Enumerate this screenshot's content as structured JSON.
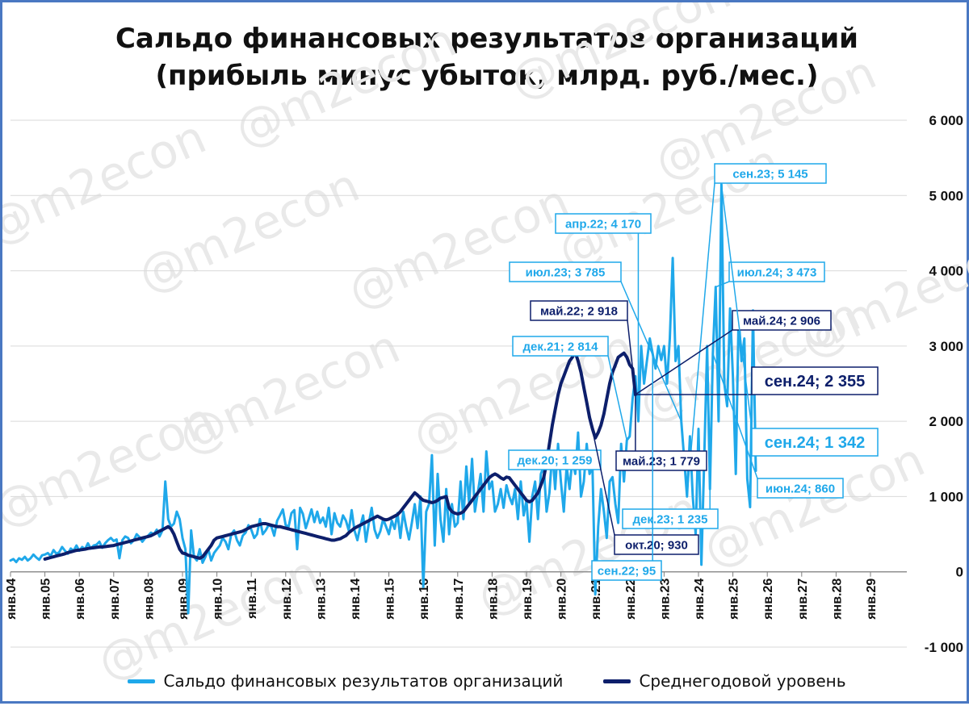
{
  "title_line1": "Сальдо финансовых результатов организаций",
  "title_line2": "(прибыль минус убыток, млрд. руб./мес.)",
  "watermark": "@m2econ",
  "colors": {
    "balance": "#1fa8ea",
    "average": "#0d1f6b",
    "grid": "#d9d9d9",
    "frame": "#4a78c2"
  },
  "chart_data": {
    "type": "line",
    "title": "Сальдо финансовых результатов организаций (прибыль минус убыток, млрд. руб./мес.)",
    "ylim": [
      -1000,
      6000
    ],
    "y_ticks": [
      -1000,
      0,
      1000,
      2000,
      3000,
      4000,
      5000,
      6000
    ],
    "y_tick_labels": [
      "-1 000",
      "0",
      "1 000",
      "2 000",
      "3 000",
      "4 000",
      "5 000",
      "6 000"
    ],
    "y_axis_position": "right",
    "grid": true,
    "legend_position": "bottom",
    "x_tick_labels": [
      "янв.04",
      "янв.05",
      "янв.06",
      "янв.07",
      "янв.08",
      "янв.09",
      "янв.10",
      "янв.11",
      "янв.12",
      "янв.13",
      "янв.14",
      "янв.15",
      "янв.16",
      "янв.17",
      "янв.18",
      "янв.19",
      "янв.20",
      "янв.21",
      "янв.22",
      "янв.23",
      "янв.24",
      "янв.25",
      "янв.26",
      "янв.27",
      "янв.28",
      "янв.29"
    ],
    "x_range": [
      "янв.04",
      "янв.29"
    ],
    "series": [
      {
        "name": "Сальдо финансовых результатов организаций",
        "color": "#1fa8ea",
        "start": "янв.04",
        "values": [
          150,
          170,
          130,
          180,
          160,
          200,
          150,
          180,
          230,
          190,
          160,
          220,
          230,
          250,
          210,
          290,
          240,
          260,
          330,
          280,
          240,
          310,
          280,
          350,
          280,
          330,
          300,
          380,
          310,
          350,
          360,
          400,
          320,
          380,
          420,
          450,
          410,
          430,
          180,
          420,
          470,
          450,
          380,
          420,
          500,
          460,
          400,
          450,
          480,
          520,
          500,
          560,
          470,
          550,
          1200,
          700,
          600,
          640,
          800,
          700,
          450,
          300,
          -550,
          550,
          200,
          150,
          300,
          120,
          200,
          300,
          150,
          250,
          300,
          350,
          450,
          400,
          300,
          500,
          550,
          420,
          350,
          480,
          520,
          620,
          560,
          450,
          500,
          700,
          500,
          550,
          620,
          600,
          480,
          680,
          750,
          830,
          620,
          600,
          780,
          820,
          300,
          850,
          770,
          580,
          700,
          830,
          660,
          800,
          650,
          720,
          600,
          850,
          500,
          780,
          650,
          600,
          750,
          680,
          550,
          820,
          550,
          420,
          600,
          750,
          400,
          650,
          850,
          560,
          450,
          540,
          700,
          600,
          500,
          680,
          570,
          780,
          450,
          800,
          600,
          430,
          650,
          900,
          580,
          1000,
          -200,
          800,
          900,
          1550,
          350,
          1300,
          700,
          400,
          1100,
          500,
          900,
          600,
          650,
          1200,
          700,
          1400,
          900,
          1500,
          800,
          1050,
          1300,
          800,
          1600,
          1100,
          1200,
          800,
          900,
          1100,
          850,
          1150,
          1000,
          900,
          1100,
          700,
          1200,
          750,
          950,
          400,
          1000,
          1200,
          700,
          1300,
          1400,
          800,
          1050,
          1600,
          1100,
          1700,
          1200,
          800,
          1400,
          1100,
          1500,
          1300,
          1850,
          1000,
          1200,
          1700,
          1300,
          1400,
          -300,
          600,
          1100,
          800,
          450,
          1200,
          1259,
          900,
          650,
          1700,
          1200,
          1750,
          1800,
          2300,
          2600,
          2000,
          3000,
          2500,
          2800,
          3100,
          2900,
          2700,
          3000,
          2814,
          3000,
          2500,
          3100,
          4170,
          2800,
          3000,
          2000,
          1500,
          1000,
          1800,
          1000,
          500,
          1900,
          95,
          1500,
          3000,
          1100,
          2900,
          3785,
          2000,
          5145,
          2500,
          2200,
          3500,
          2600,
          1300,
          3400,
          2800,
          3100,
          1235,
          860,
          3473,
          1342
        ]
      },
      {
        "name": "Среднегодовой уровень",
        "color": "#0d1f6b",
        "start": "янв.05",
        "values": [
          170,
          180,
          190,
          200,
          210,
          220,
          230,
          240,
          255,
          265,
          275,
          285,
          290,
          295,
          300,
          310,
          315,
          320,
          325,
          330,
          330,
          335,
          340,
          345,
          350,
          360,
          370,
          380,
          390,
          400,
          410,
          420,
          430,
          440,
          450,
          460,
          470,
          480,
          500,
          520,
          540,
          560,
          580,
          600,
          570,
          500,
          400,
          300,
          250,
          240,
          220,
          210,
          200,
          190,
          180,
          200,
          250,
          300,
          350,
          420,
          450,
          460,
          470,
          480,
          490,
          500,
          510,
          520,
          530,
          540,
          560,
          580,
          600,
          610,
          620,
          630,
          640,
          640,
          630,
          620,
          610,
          600,
          600,
          590,
          580,
          570,
          560,
          550,
          540,
          530,
          520,
          510,
          500,
          490,
          480,
          470,
          460,
          450,
          440,
          430,
          420,
          420,
          430,
          440,
          460,
          480,
          520,
          550,
          580,
          600,
          620,
          640,
          660,
          680,
          700,
          720,
          740,
          720,
          700,
          690,
          700,
          720,
          740,
          760,
          800,
          850,
          900,
          950,
          1000,
          1050,
          1020,
          980,
          950,
          940,
          930,
          920,
          930,
          950,
          980,
          990,
          1000,
          850,
          800,
          780,
          770,
          780,
          800,
          850,
          900,
          950,
          1000,
          1050,
          1100,
          1150,
          1200,
          1250,
          1280,
          1300,
          1280,
          1250,
          1230,
          1259,
          1250,
          1200,
          1150,
          1100,
          1050,
          1000,
          950,
          930,
          950,
          1000,
          1050,
          1150,
          1250,
          1450,
          1700,
          1950,
          2150,
          2350,
          2500,
          2600,
          2700,
          2800,
          2850,
          2918,
          2800,
          2650,
          2450,
          2250,
          2050,
          1900,
          1779,
          1850,
          1950,
          2100,
          2300,
          2500,
          2650,
          2750,
          2850,
          2880,
          2906,
          2850,
          2750,
          2700,
          2355
        ]
      }
    ],
    "annotations": [
      {
        "label": "сен.23; 5 145",
        "series": "Сальдо финансовых результатов организаций"
      },
      {
        "label": "апр.22; 4 170",
        "series": "Сальдо финансовых результатов организаций"
      },
      {
        "label": "июл.23; 3 785",
        "series": "Сальдо финансовых результатов организаций"
      },
      {
        "label": "июл.24; 3 473",
        "series": "Сальдо финансовых результатов организаций"
      },
      {
        "label": "май.22; 2 918",
        "series": "Среднегодовой уровень"
      },
      {
        "label": "май.24; 2 906",
        "series": "Среднегодовой уровень"
      },
      {
        "label": "дек.21; 2 814",
        "series": "Сальдо финансовых результатов организаций"
      },
      {
        "label": "сен.24; 2 355",
        "series": "Среднегодовой уровень"
      },
      {
        "label": "сен.24; 1 342",
        "series": "Сальдо финансовых результатов организаций"
      },
      {
        "label": "дек.20; 1 259",
        "series": "Сальдо финансовых результатов организаций"
      },
      {
        "label": "май.23; 1 779",
        "series": "Среднегодовой уровень"
      },
      {
        "label": "июн.24; 860",
        "series": "Сальдо финансовых результатов организаций"
      },
      {
        "label": "дек.23; 1 235",
        "series": "Сальдо финансовых результатов организаций"
      },
      {
        "label": "окт.20; 930",
        "series": "Среднегодовой уровень"
      },
      {
        "label": "сен.22; 95",
        "series": "Сальдо финансовых результатов организаций"
      }
    ]
  }
}
